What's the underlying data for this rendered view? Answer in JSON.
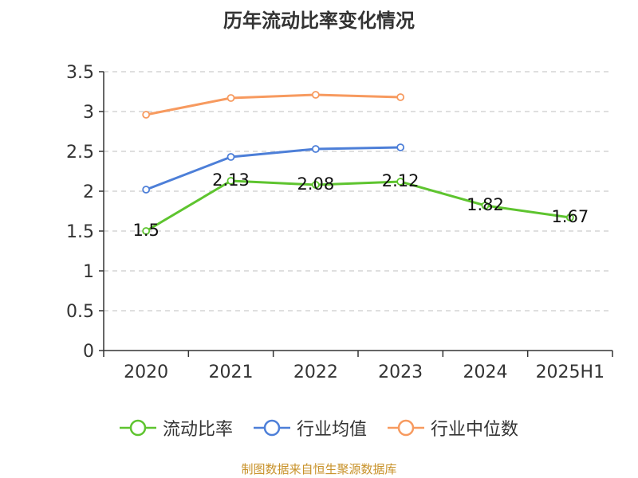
{
  "source": "制图数据来自恒生聚源数据库",
  "colors": {
    "axis": "#333333",
    "grid": "#cccccc",
    "text": "#333333",
    "source": "#c8922a"
  },
  "chart_data": {
    "type": "line",
    "title": "历年流动比率变化情况",
    "categories": [
      "2020",
      "2021",
      "2022",
      "2023",
      "2024",
      "2025H1"
    ],
    "ylim": [
      0,
      3.5
    ],
    "yticks": [
      "0",
      "0.5",
      "1",
      "1.5",
      "2",
      "2.5",
      "3",
      "3.5"
    ],
    "grid": true,
    "legend_position": "bottom",
    "series": [
      {
        "name": "流动比率",
        "color": "#5ec42f",
        "values": [
          1.5,
          2.13,
          2.08,
          2.12,
          1.82,
          1.67
        ],
        "labels": [
          "1.5",
          "2.13",
          "2.08",
          "2.12",
          "1.82",
          "1.67"
        ]
      },
      {
        "name": "行业均值",
        "color": "#4d7fd8",
        "values": [
          2.02,
          2.43,
          2.53,
          2.55,
          null,
          null
        ]
      },
      {
        "name": "行业中位数",
        "color": "#f79a5f",
        "values": [
          2.96,
          3.17,
          3.21,
          3.18,
          null,
          null
        ]
      }
    ]
  }
}
